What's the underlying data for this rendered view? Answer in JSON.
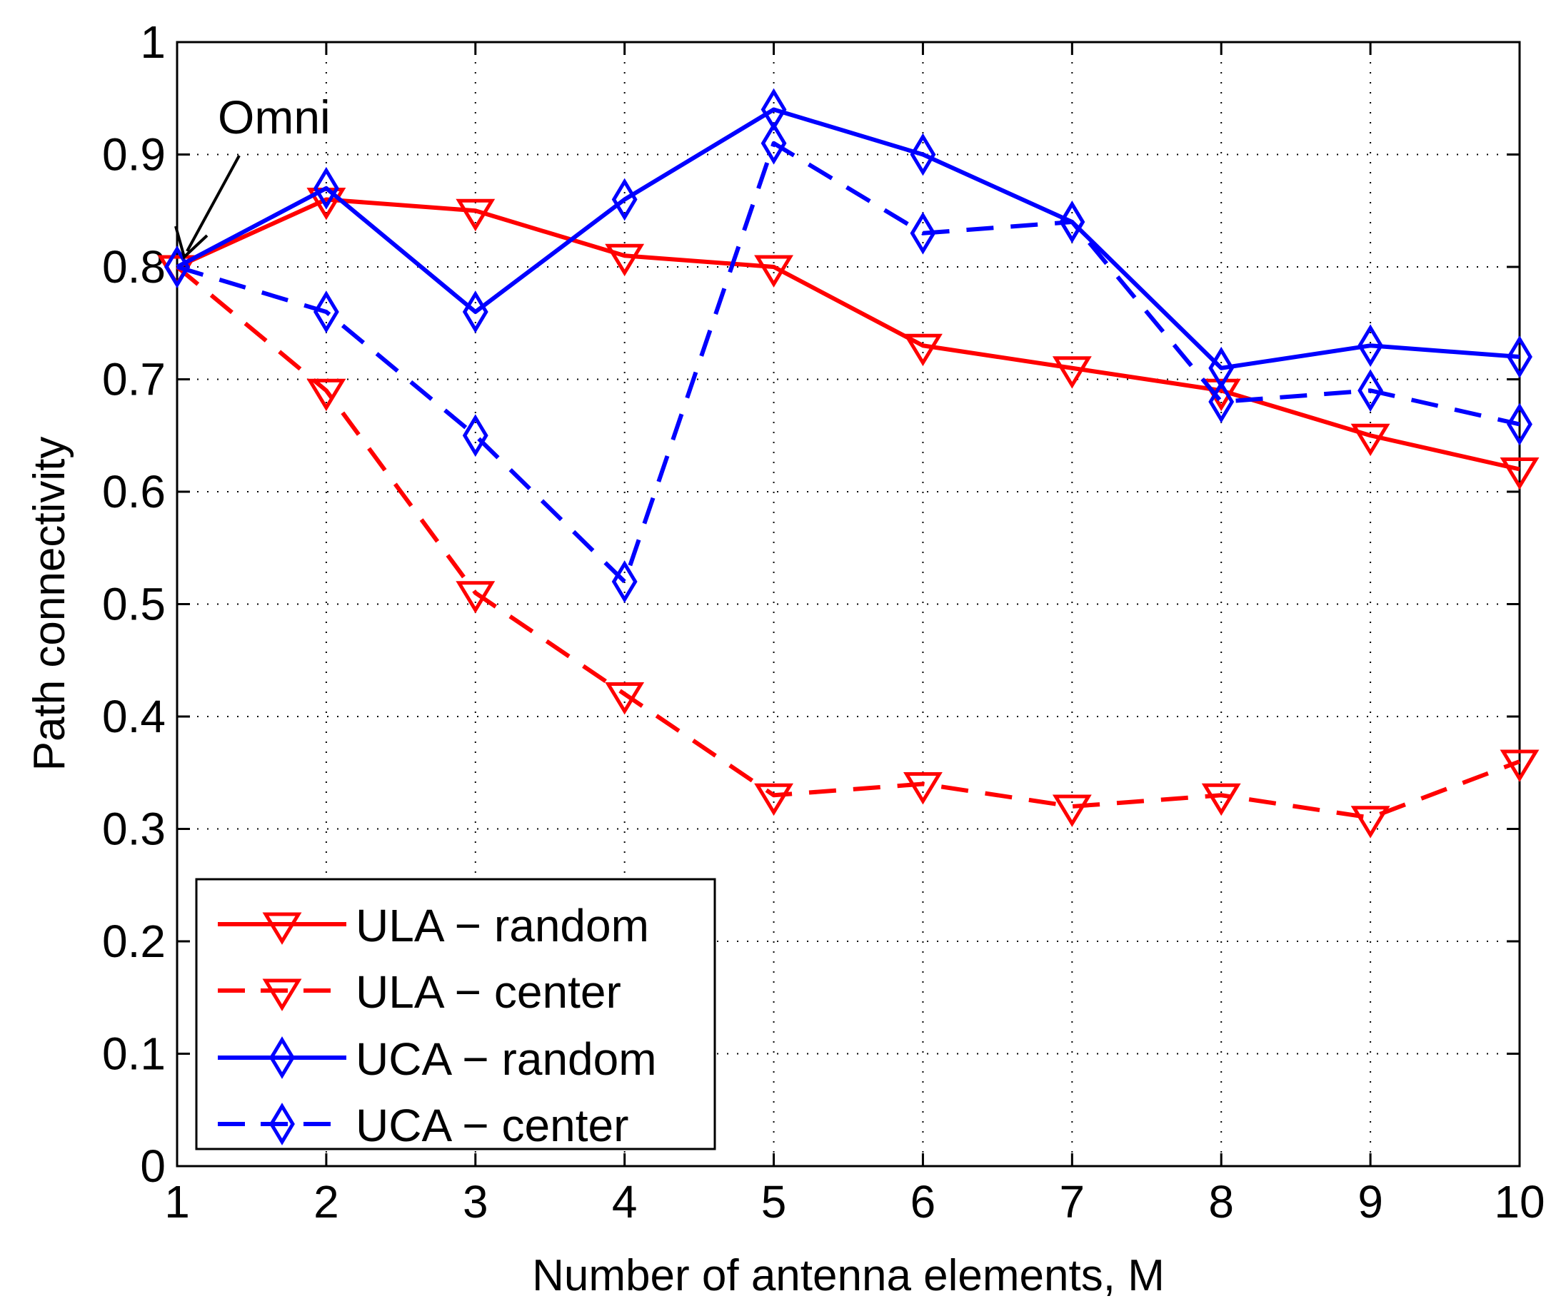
{
  "chart_data": {
    "type": "line",
    "title": "",
    "xlabel": "Number of antenna elements, M",
    "ylabel": "Path connectivity",
    "xlim": [
      1,
      10
    ],
    "ylim": [
      0,
      1
    ],
    "x": [
      1,
      2,
      3,
      4,
      5,
      6,
      7,
      8,
      9,
      10
    ],
    "xticks": [
      "1",
      "2",
      "3",
      "4",
      "5",
      "6",
      "7",
      "8",
      "9",
      "10"
    ],
    "yticks": [
      "0",
      "0.1",
      "0.2",
      "0.3",
      "0.4",
      "0.5",
      "0.6",
      "0.7",
      "0.8",
      "0.9",
      "1"
    ],
    "grid": true,
    "legend_position": "bottom-left",
    "series": [
      {
        "name": "ULA − random",
        "color": "#ff0000",
        "dashed": false,
        "marker": "triangle-down",
        "values": [
          0.8,
          0.86,
          0.85,
          0.81,
          0.8,
          0.73,
          0.71,
          0.69,
          0.65,
          0.62
        ]
      },
      {
        "name": "ULA − center",
        "color": "#ff0000",
        "dashed": true,
        "marker": "triangle-down",
        "values": [
          0.8,
          0.69,
          0.51,
          0.42,
          0.33,
          0.34,
          0.32,
          0.33,
          0.31,
          0.36
        ]
      },
      {
        "name": "UCA − random",
        "color": "#0000ff",
        "dashed": false,
        "marker": "diamond",
        "values": [
          0.8,
          0.87,
          0.76,
          0.86,
          0.94,
          0.9,
          0.84,
          0.71,
          0.73,
          0.72
        ]
      },
      {
        "name": "UCA − center",
        "color": "#0000ff",
        "dashed": true,
        "marker": "diamond",
        "values": [
          0.8,
          0.76,
          0.65,
          0.52,
          0.91,
          0.83,
          0.84,
          0.68,
          0.69,
          0.66
        ]
      }
    ],
    "annotations": [
      {
        "text": "Omni",
        "x": 1,
        "y": 0.8
      }
    ]
  }
}
